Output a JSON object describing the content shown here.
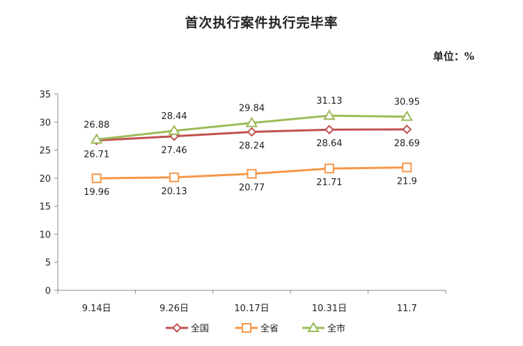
{
  "chart_data": {
    "type": "line",
    "title": "首次执行案件执行完毕率",
    "unit_label": "单位：%",
    "categories": [
      "9.14日",
      "9.26日",
      "10.17日",
      "10.31日",
      "11.7"
    ],
    "ylim": [
      0,
      35
    ],
    "yticks": [
      0,
      5,
      10,
      15,
      20,
      25,
      30,
      35
    ],
    "grid": false,
    "legend_position": "bottom",
    "series": [
      {
        "name": "全国",
        "color": "#C0504D",
        "marker": "diamond",
        "values": [
          26.71,
          27.46,
          28.24,
          28.64,
          28.69
        ],
        "labels": [
          "26.71",
          "27.46",
          "28.24",
          "28.64",
          "28.69"
        ]
      },
      {
        "name": "全省",
        "color": "#F79646",
        "marker": "square",
        "values": [
          19.96,
          20.13,
          20.77,
          21.71,
          21.9
        ],
        "labels": [
          "19.96",
          "20.13",
          "20.77",
          "21.71",
          "21.9"
        ]
      },
      {
        "name": "全市",
        "color": "#9BBB59",
        "marker": "triangle",
        "values": [
          26.88,
          28.44,
          29.84,
          31.13,
          30.95
        ],
        "labels": [
          "26.88",
          "28.44",
          "29.84",
          "31.13",
          "30.95"
        ]
      }
    ]
  }
}
